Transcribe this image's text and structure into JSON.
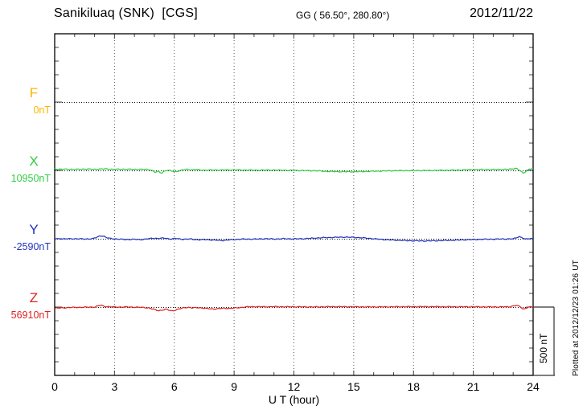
{
  "header": {
    "title": "Sanikiluaq (SNK)  [CGS]",
    "coordinates": "GG ( 56.50°, 280.80°)",
    "date": "2012/11/22"
  },
  "footer": {
    "x_axis_label": "U T (hour)",
    "plotted_at": "Plotted at 2012/12/23 01:26 UT"
  },
  "scale_bar": {
    "label": "500 nT",
    "nT": 500
  },
  "colors": {
    "axis": "#000000",
    "ticks": "#444444",
    "grid": "#555555",
    "baseline_dots": "#111111",
    "scale_bar": "#333333"
  },
  "chart_data": {
    "type": "line",
    "title": "Sanikiluaq (SNK) [CGS] magnetogram 2012/11/22",
    "xlabel": "U T (hour)",
    "x_range": [
      0,
      24
    ],
    "x_major_ticks": [
      0,
      3,
      6,
      9,
      12,
      15,
      18,
      21,
      24
    ],
    "x_minor_step_hours": 1,
    "y_minor_tick_nT": 100,
    "scale_bar_nT": 500,
    "grid": "dotted at 3-hour intervals and at each trace baseline",
    "legend_position": "left of axis, one label per trace",
    "series": [
      {
        "name": "F",
        "baseline_label": "0nT",
        "baseline_nT": 0,
        "color": "#FFB400",
        "anchors_hour_deltaNT": []
      },
      {
        "name": "X",
        "baseline_label": "10950nT",
        "baseline_nT": 10950,
        "color": "#33CC44",
        "anchors_hour_deltaNT": [
          [
            0,
            16
          ],
          [
            0.1,
            8
          ],
          [
            0.5,
            9
          ],
          [
            1,
            7
          ],
          [
            1.5,
            10
          ],
          [
            2,
            8
          ],
          [
            2.5,
            11
          ],
          [
            3,
            8
          ],
          [
            3.5,
            9
          ],
          [
            4,
            7
          ],
          [
            4.5,
            8
          ],
          [
            4.8,
            5
          ],
          [
            5.05,
            -14
          ],
          [
            5.2,
            -7
          ],
          [
            5.35,
            -20
          ],
          [
            5.5,
            -5
          ],
          [
            5.65,
            2
          ],
          [
            5.9,
            -6
          ],
          [
            6.1,
            -9
          ],
          [
            6.3,
            0
          ],
          [
            6.6,
            8
          ],
          [
            6.9,
            4
          ],
          [
            7.1,
            7
          ],
          [
            7.4,
            2
          ],
          [
            8,
            3
          ],
          [
            9,
            4
          ],
          [
            10,
            2
          ],
          [
            11,
            3
          ],
          [
            12,
            0
          ],
          [
            13,
            -2
          ],
          [
            13.8,
            -8
          ],
          [
            14.5,
            -10
          ],
          [
            15.3,
            -9
          ],
          [
            16,
            -6
          ],
          [
            17,
            -2
          ],
          [
            18,
            -1
          ],
          [
            19,
            0
          ],
          [
            20,
            2
          ],
          [
            21,
            6
          ],
          [
            22,
            6
          ],
          [
            22.8,
            8
          ],
          [
            23.15,
            16
          ],
          [
            23.35,
            -2
          ],
          [
            23.5,
            -22
          ],
          [
            23.65,
            -5
          ],
          [
            23.8,
            10
          ],
          [
            24,
            13
          ]
        ]
      },
      {
        "name": "Y",
        "baseline_label": "-2590nT",
        "baseline_nT": -2590,
        "color": "#2233BB",
        "anchors_hour_deltaNT": [
          [
            0,
            0
          ],
          [
            0.5,
            -1
          ],
          [
            1,
            0
          ],
          [
            1.5,
            -2
          ],
          [
            1.9,
            0
          ],
          [
            2.1,
            10
          ],
          [
            2.3,
            22
          ],
          [
            2.45,
            19
          ],
          [
            2.6,
            8
          ],
          [
            2.8,
            2
          ],
          [
            3.2,
            -3
          ],
          [
            3.6,
            -6
          ],
          [
            4,
            -4
          ],
          [
            4.3,
            -7
          ],
          [
            4.6,
            -2
          ],
          [
            4.9,
            4
          ],
          [
            5.2,
            2
          ],
          [
            5.5,
            5
          ],
          [
            5.8,
            -2
          ],
          [
            6.1,
            2
          ],
          [
            6.4,
            -4
          ],
          [
            6.8,
            -2
          ],
          [
            7.2,
            -8
          ],
          [
            7.6,
            -6
          ],
          [
            8,
            -10
          ],
          [
            8.4,
            -13
          ],
          [
            8.8,
            -8
          ],
          [
            9.2,
            -4
          ],
          [
            9.6,
            -2
          ],
          [
            10,
            -3
          ],
          [
            10.5,
            0
          ],
          [
            11,
            -2
          ],
          [
            11.5,
            0
          ],
          [
            12,
            -1
          ],
          [
            12.5,
            0
          ],
          [
            13,
            4
          ],
          [
            13.5,
            8
          ],
          [
            14,
            10
          ],
          [
            14.5,
            12
          ],
          [
            15,
            10
          ],
          [
            15.5,
            6
          ],
          [
            16,
            0
          ],
          [
            16.5,
            -6
          ],
          [
            17,
            -10
          ],
          [
            17.5,
            -13
          ],
          [
            18,
            -15
          ],
          [
            18.5,
            -16
          ],
          [
            19,
            -15
          ],
          [
            19.5,
            -13
          ],
          [
            20,
            -11
          ],
          [
            20.5,
            -8
          ],
          [
            21,
            -6
          ],
          [
            21.5,
            -4
          ],
          [
            22,
            -3
          ],
          [
            22.5,
            -2
          ],
          [
            23,
            -1
          ],
          [
            23.3,
            16
          ],
          [
            23.45,
            8
          ],
          [
            23.6,
            -4
          ],
          [
            23.8,
            0
          ],
          [
            24,
            2
          ]
        ]
      },
      {
        "name": "Z",
        "baseline_label": "56910nT",
        "baseline_nT": 56910,
        "color": "#DD2222",
        "anchors_hour_deltaNT": [
          [
            0,
            -8
          ],
          [
            0.4,
            -6
          ],
          [
            0.8,
            -3
          ],
          [
            1.2,
            -2
          ],
          [
            1.6,
            -1
          ],
          [
            2,
            0
          ],
          [
            2.2,
            10
          ],
          [
            2.35,
            13
          ],
          [
            2.5,
            4
          ],
          [
            2.8,
            2
          ],
          [
            3.2,
            0
          ],
          [
            3.6,
            1
          ],
          [
            4,
            -1
          ],
          [
            4.4,
            -2
          ],
          [
            4.7,
            -6
          ],
          [
            5,
            -18
          ],
          [
            5.2,
            -26
          ],
          [
            5.4,
            -22
          ],
          [
            5.6,
            -16
          ],
          [
            5.75,
            -24
          ],
          [
            5.9,
            -28
          ],
          [
            6.1,
            -20
          ],
          [
            6.3,
            -12
          ],
          [
            6.5,
            -4
          ],
          [
            6.7,
            -2
          ],
          [
            6.9,
            -6
          ],
          [
            7.2,
            -4
          ],
          [
            7.6,
            -10
          ],
          [
            7.9,
            -14
          ],
          [
            8.2,
            -12
          ],
          [
            8.5,
            -8
          ],
          [
            8.8,
            -10
          ],
          [
            9.1,
            -6
          ],
          [
            9.4,
            -2
          ],
          [
            9.7,
            2
          ],
          [
            10,
            3
          ],
          [
            10.5,
            2
          ],
          [
            11,
            3
          ],
          [
            11.5,
            2
          ],
          [
            12,
            2
          ],
          [
            13,
            1
          ],
          [
            14,
            3
          ],
          [
            15,
            2
          ],
          [
            16,
            1
          ],
          [
            17,
            2
          ],
          [
            18,
            3
          ],
          [
            19,
            3
          ],
          [
            20,
            2
          ],
          [
            21,
            2
          ],
          [
            22,
            1
          ],
          [
            22.8,
            2
          ],
          [
            23.15,
            12
          ],
          [
            23.35,
            4
          ],
          [
            23.5,
            -16
          ],
          [
            23.7,
            -4
          ],
          [
            23.9,
            2
          ],
          [
            24,
            0
          ]
        ]
      }
    ]
  }
}
